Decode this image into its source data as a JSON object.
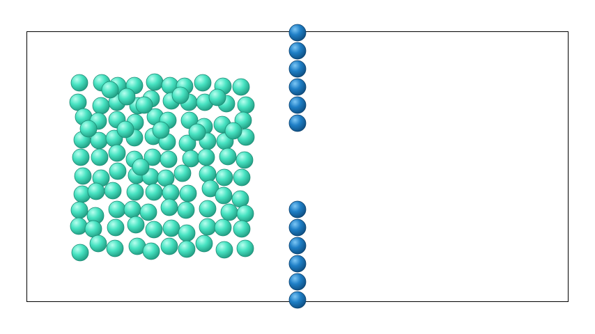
{
  "scene": {
    "background": "#ffffff",
    "box_stroke": "#000000",
    "gas_color": "#3fe0bf",
    "wall_color": "#1f7cc4",
    "gas_particle_count": 111,
    "wall_particle_count": 12
  }
}
